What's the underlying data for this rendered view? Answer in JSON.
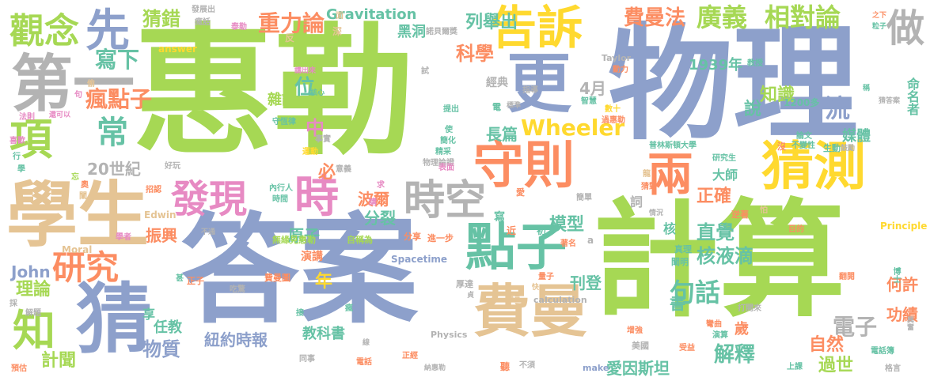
{
  "palette": {
    "green": "#a6d854",
    "blue": "#8da0cb",
    "tan": "#e5c494",
    "orange": "#fc8d62",
    "teal": "#66c2a5",
    "pink": "#e78ac3",
    "yellow": "#ffd92f",
    "gray": "#b3b3b3"
  },
  "words": [
    {
      "text": "惠勒",
      "color": "green"
    },
    {
      "text": "物理",
      "color": "blue"
    },
    {
      "text": "計算",
      "color": "green"
    },
    {
      "text": "答案",
      "color": "blue"
    },
    {
      "text": "學生",
      "color": "tan"
    },
    {
      "text": "費曼",
      "color": "tan"
    },
    {
      "text": "猜測",
      "color": "yellow"
    },
    {
      "text": "守則",
      "color": "orange"
    },
    {
      "text": "更",
      "color": "blue"
    },
    {
      "text": "告訴",
      "color": "yellow"
    },
    {
      "text": "第一",
      "color": "gray"
    },
    {
      "text": "猜",
      "color": "blue"
    },
    {
      "text": "點子",
      "color": "teal"
    },
    {
      "text": "兩",
      "color": "orange"
    },
    {
      "text": "時空",
      "color": "gray"
    },
    {
      "text": "發現",
      "color": "pink"
    },
    {
      "text": "時",
      "color": "pink"
    },
    {
      "text": "觀念",
      "color": "green"
    },
    {
      "text": "先",
      "color": "blue"
    },
    {
      "text": "做",
      "color": "gray"
    },
    {
      "text": "項",
      "color": "green"
    },
    {
      "text": "知",
      "color": "green"
    },
    {
      "text": "研究",
      "color": "orange"
    },
    {
      "text": "廣義",
      "color": "green"
    },
    {
      "text": "相對論",
      "color": "green"
    },
    {
      "text": "費曼法",
      "color": "orange"
    },
    {
      "text": "重力論",
      "color": "orange"
    },
    {
      "text": "猜錯",
      "color": "green"
    },
    {
      "text": "常",
      "color": "teal"
    },
    {
      "text": "瘋點子",
      "color": "orange"
    },
    {
      "text": "寫下",
      "color": "teal"
    },
    {
      "text": "科學",
      "color": "orange"
    },
    {
      "text": "列舉出",
      "color": "teal"
    },
    {
      "text": "Wheeler",
      "color": "yellow"
    },
    {
      "text": "句話",
      "color": "teal"
    },
    {
      "text": "一流",
      "color": "blue"
    },
    {
      "text": "知識",
      "color": "green"
    },
    {
      "text": "正確",
      "color": "orange"
    },
    {
      "text": "直覺",
      "color": "teal"
    },
    {
      "text": "核液滴",
      "color": "teal"
    },
    {
      "text": "解釋",
      "color": "teal"
    },
    {
      "text": "電子",
      "color": "gray"
    },
    {
      "text": "自然",
      "color": "orange"
    },
    {
      "text": "過世",
      "color": "green"
    },
    {
      "text": "何許",
      "color": "orange"
    },
    {
      "text": "功績",
      "color": "orange"
    },
    {
      "text": "紐約時報",
      "color": "blue"
    },
    {
      "text": "物質",
      "color": "blue"
    },
    {
      "text": "理論",
      "color": "green"
    },
    {
      "text": "計聞",
      "color": "green"
    },
    {
      "text": "振興",
      "color": "orange"
    },
    {
      "text": "原子",
      "color": "teal"
    },
    {
      "text": "波爾",
      "color": "orange"
    },
    {
      "text": "分裂",
      "color": "teal"
    },
    {
      "text": "模型",
      "color": "teal"
    },
    {
      "text": "刊登",
      "color": "teal"
    },
    {
      "text": "長篇",
      "color": "teal"
    },
    {
      "text": "愛因斯坦",
      "color": "teal"
    },
    {
      "text": "John",
      "color": "blue"
    },
    {
      "text": "20世紀",
      "color": "gray"
    },
    {
      "text": "1939年",
      "color": "teal"
    },
    {
      "text": "Gravitation",
      "color": "teal"
    },
    {
      "text": "黑洞",
      "color": "teal"
    },
    {
      "text": "4月",
      "color": "gray"
    },
    {
      "text": "中",
      "color": "pink"
    },
    {
      "text": "位",
      "color": "teal"
    },
    {
      "text": "年",
      "color": "yellow"
    },
    {
      "text": "必",
      "color": "orange"
    },
    {
      "text": "說",
      "color": "teal"
    },
    {
      "text": "媒體",
      "color": "teal"
    },
    {
      "text": "命名者",
      "color": "teal"
    },
    {
      "text": "書",
      "color": "teal"
    },
    {
      "text": "歲",
      "color": "orange"
    },
    {
      "text": "雜誌",
      "color": "green"
    },
    {
      "text": "教科書",
      "color": "teal"
    },
    {
      "text": "任教",
      "color": "teal"
    },
    {
      "text": "享",
      "color": "teal"
    },
    {
      "text": "大師",
      "color": "teal"
    },
    {
      "text": "1200多",
      "color": "teal"
    },
    {
      "text": "普林斯頓大學",
      "color": "teal"
    },
    {
      "text": "Spacetime",
      "color": "blue"
    },
    {
      "text": "Physics",
      "color": "gray"
    },
    {
      "text": "calculation",
      "color": "gray"
    },
    {
      "text": "Principle",
      "color": "yellow"
    },
    {
      "text": "Moral",
      "color": "tan"
    },
    {
      "text": "Edwin",
      "color": "tan"
    },
    {
      "text": "answer",
      "color": "yellow"
    },
    {
      "text": "Taylor",
      "color": "gray"
    },
    {
      "text": "make",
      "color": "blue"
    },
    {
      "text": "經典",
      "color": "gray"
    },
    {
      "text": "演講",
      "color": "orange"
    },
    {
      "text": "無緣見惠勒",
      "color": "green"
    },
    {
      "text": "自稱為",
      "color": "green"
    },
    {
      "text": "進一步",
      "color": "orange"
    },
    {
      "text": "分享",
      "color": "orange"
    },
    {
      "text": "諾貝爾獎",
      "color": "gray"
    },
    {
      "text": "發展出",
      "color": "gray"
    },
    {
      "text": "瘋話",
      "color": "gray"
    },
    {
      "text": "物理論證",
      "color": "gray"
    },
    {
      "text": "過惠勒",
      "color": "orange"
    },
    {
      "text": "研究生",
      "color": "teal"
    },
    {
      "text": "翻閱",
      "color": "orange"
    },
    {
      "text": "電話簿",
      "color": "teal"
    },
    {
      "text": "博士",
      "color": "teal"
    },
    {
      "text": "興奮",
      "color": "gray"
    },
    {
      "text": "格言",
      "color": "gray"
    },
    {
      "text": "上課",
      "color": "teal"
    },
    {
      "text": "打開來",
      "color": "gray"
    },
    {
      "text": "演算",
      "color": "teal"
    },
    {
      "text": "受益",
      "color": "orange"
    },
    {
      "text": "彎曲",
      "color": "orange"
    },
    {
      "text": "增強",
      "color": "orange"
    },
    {
      "text": "美國",
      "color": "gray"
    },
    {
      "text": "量子",
      "color": "orange"
    },
    {
      "text": "厚達",
      "color": "gray"
    },
    {
      "text": "費曼圖",
      "color": "orange"
    },
    {
      "text": "正子",
      "color": "orange"
    },
    {
      "text": "吃驚",
      "color": "gray"
    },
    {
      "text": "解題",
      "color": "gray"
    },
    {
      "text": "預估",
      "color": "orange"
    },
    {
      "text": "同事",
      "color": "gray"
    },
    {
      "text": "電話",
      "color": "orange"
    },
    {
      "text": "正經",
      "color": "orange"
    },
    {
      "text": "納惠勒",
      "color": "gray"
    },
    {
      "text": "聽",
      "color": "orange"
    },
    {
      "text": "不須",
      "color": "gray"
    },
    {
      "text": "學者",
      "color": "pink"
    },
    {
      "text": "招認",
      "color": "orange"
    },
    {
      "text": "內行人",
      "color": "teal"
    },
    {
      "text": "時間",
      "color": "teal"
    },
    {
      "text": "運動",
      "color": "yellow"
    },
    {
      "text": "事實",
      "color": "gray"
    },
    {
      "text": "意義",
      "color": "gray"
    },
    {
      "text": "守恆律",
      "color": "teal"
    },
    {
      "text": "好玩",
      "color": "gray"
    },
    {
      "text": "精采",
      "color": "teal"
    },
    {
      "text": "簡化",
      "color": "teal"
    },
    {
      "text": "表面",
      "color": "pink"
    },
    {
      "text": "簡單",
      "color": "gray"
    },
    {
      "text": "猜對",
      "color": "orange"
    },
    {
      "text": "情況",
      "color": "gray"
    },
    {
      "text": "逆著",
      "color": "orange"
    },
    {
      "text": "目的",
      "color": "orange"
    },
    {
      "text": "真理",
      "color": "teal"
    },
    {
      "text": "闡明",
      "color": "teal"
    },
    {
      "text": "不變性",
      "color": "teal"
    },
    {
      "text": "論文",
      "color": "teal"
    },
    {
      "text": "生動",
      "color": "teal"
    },
    {
      "text": "鼓勵",
      "color": "gray"
    },
    {
      "text": "猜答案",
      "color": "gray"
    },
    {
      "text": "教授",
      "color": "teal"
    },
    {
      "text": "動力",
      "color": "orange"
    },
    {
      "text": "智慧",
      "color": "teal"
    },
    {
      "text": "數十",
      "color": "yellow"
    },
    {
      "text": "指導",
      "color": "gray"
    },
    {
      "text": "標準",
      "color": "gray"
    },
    {
      "text": "提出",
      "color": "teal"
    },
    {
      "text": "講出來",
      "color": "pink"
    },
    {
      "text": "核心",
      "color": "teal"
    },
    {
      "text": "泰勒",
      "color": "pink"
    },
    {
      "text": "之下",
      "color": "orange"
    },
    {
      "text": "粒子",
      "color": "teal"
    },
    {
      "text": "稱",
      "color": "teal"
    },
    {
      "text": "法則",
      "color": "pink"
    },
    {
      "text": "還可以",
      "color": "pink"
    },
    {
      "text": "喜歡",
      "color": "pink"
    },
    {
      "text": "行",
      "color": "teal"
    },
    {
      "text": "學",
      "color": "teal"
    },
    {
      "text": "忘",
      "color": "green"
    },
    {
      "text": "奧",
      "color": "orange"
    },
    {
      "text": "闡",
      "color": "tan"
    },
    {
      "text": "偷",
      "color": "tan"
    },
    {
      "text": "句",
      "color": "pink"
    },
    {
      "text": "試",
      "color": "gray"
    },
    {
      "text": "反",
      "color": "tan"
    },
    {
      "text": "深",
      "color": "tan"
    },
    {
      "text": "面",
      "color": "tan"
    },
    {
      "text": "詞",
      "color": "gray"
    },
    {
      "text": "寫",
      "color": "teal"
    },
    {
      "text": "核",
      "color": "teal"
    },
    {
      "text": "近",
      "color": "orange"
    },
    {
      "text": "初",
      "color": "teal"
    },
    {
      "text": "瘋",
      "color": "teal"
    },
    {
      "text": "求",
      "color": "pink"
    },
    {
      "text": "使",
      "color": "teal"
    },
    {
      "text": "愛",
      "color": "orange"
    },
    {
      "text": "電",
      "color": "teal"
    },
    {
      "text": "講",
      "color": "pink"
    },
    {
      "text": "線",
      "color": "gray"
    },
    {
      "text": "貞",
      "color": "gray"
    },
    {
      "text": "快",
      "color": "tan"
    },
    {
      "text": "建言",
      "color": "tan"
    },
    {
      "text": "著名",
      "color": "orange"
    },
    {
      "text": "龍",
      "color": "tan"
    },
    {
      "text": "怕",
      "color": "tan"
    },
    {
      "text": "沒",
      "color": "orange"
    },
    {
      "text": "甚",
      "color": "teal"
    },
    {
      "text": "採",
      "color": "gray"
    },
    {
      "text": "接",
      "color": "teal"
    },
    {
      "text": "不通",
      "color": "gray"
    },
    {
      "text": "a",
      "color": "gray"
    }
  ]
}
